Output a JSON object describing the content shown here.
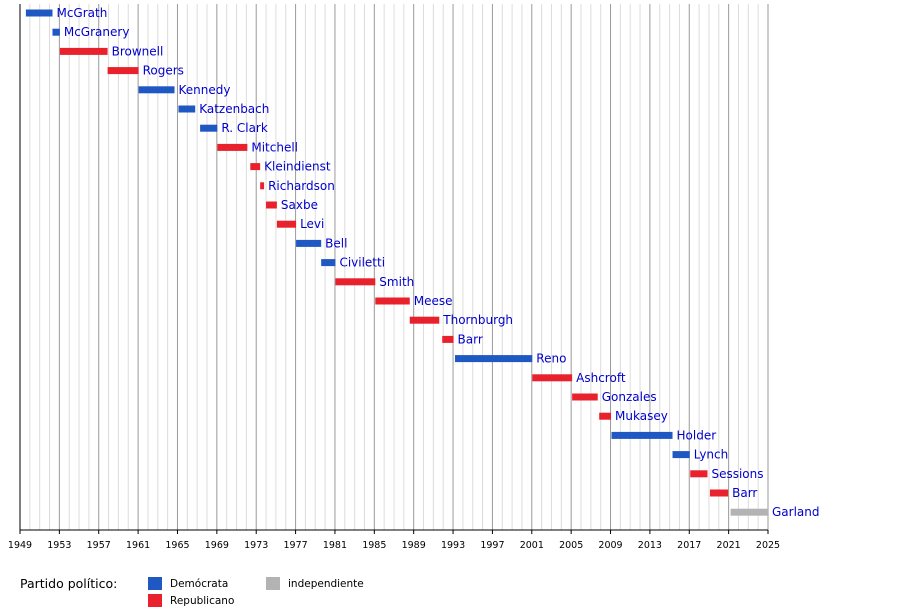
{
  "chart_data": {
    "type": "timeline",
    "xlim": [
      1949,
      2025
    ],
    "xticks": [
      "1949",
      "1953",
      "1957",
      "1961",
      "1965",
      "1969",
      "1973",
      "1977",
      "1981",
      "1985",
      "1989",
      "1993",
      "1997",
      "2001",
      "2005",
      "2009",
      "2013",
      "2017",
      "2021",
      "2025"
    ],
    "grid": "vertical every year",
    "colors": {
      "Demócrata": "#1f57c3",
      "Republicano": "#e8212c",
      "independiente": "#b3b3b3"
    },
    "terms": [
      {
        "name": "McGrath",
        "start": 1949.6,
        "end": 1952.3,
        "party": "Demócrata"
      },
      {
        "name": "McGranery",
        "start": 1952.3,
        "end": 1953.05,
        "party": "Demócrata"
      },
      {
        "name": "Brownell",
        "start": 1953.05,
        "end": 1957.9,
        "party": "Republicano"
      },
      {
        "name": "Rogers",
        "start": 1957.9,
        "end": 1961.05,
        "party": "Republicano"
      },
      {
        "name": "Kennedy",
        "start": 1961.05,
        "end": 1964.7,
        "party": "Demócrata"
      },
      {
        "name": "Katzenbach",
        "start": 1965.1,
        "end": 1966.8,
        "party": "Demócrata"
      },
      {
        "name": "R. Clark",
        "start": 1967.3,
        "end": 1969.05,
        "party": "Demócrata"
      },
      {
        "name": "Mitchell",
        "start": 1969.05,
        "end": 1972.1,
        "party": "Republicano"
      },
      {
        "name": "Kleindienst",
        "start": 1972.4,
        "end": 1973.4,
        "party": "Republicano"
      },
      {
        "name": "Richardson",
        "start": 1973.4,
        "end": 1973.8,
        "party": "Republicano"
      },
      {
        "name": "Saxbe",
        "start": 1974.0,
        "end": 1975.1,
        "party": "Republicano"
      },
      {
        "name": "Levi",
        "start": 1975.1,
        "end": 1977.05,
        "party": "Republicano"
      },
      {
        "name": "Bell",
        "start": 1977.05,
        "end": 1979.6,
        "party": "Demócrata"
      },
      {
        "name": "Civiletti",
        "start": 1979.6,
        "end": 1981.05,
        "party": "Demócrata"
      },
      {
        "name": "Smith",
        "start": 1981.05,
        "end": 1985.1,
        "party": "Republicano"
      },
      {
        "name": "Meese",
        "start": 1985.1,
        "end": 1988.6,
        "party": "Republicano"
      },
      {
        "name": "Thornburgh",
        "start": 1988.6,
        "end": 1991.6,
        "party": "Republicano"
      },
      {
        "name": "Barr",
        "start": 1991.9,
        "end": 1993.05,
        "party": "Republicano"
      },
      {
        "name": "Reno",
        "start": 1993.2,
        "end": 2001.05,
        "party": "Demócrata"
      },
      {
        "name": "Ashcroft",
        "start": 2001.05,
        "end": 2005.1,
        "party": "Republicano"
      },
      {
        "name": "Gonzales",
        "start": 2005.1,
        "end": 2007.7,
        "party": "Republicano"
      },
      {
        "name": "Mukasey",
        "start": 2007.85,
        "end": 2009.05,
        "party": "Republicano"
      },
      {
        "name": "Holder",
        "start": 2009.1,
        "end": 2015.3,
        "party": "Demócrata"
      },
      {
        "name": "Lynch",
        "start": 2015.3,
        "end": 2017.05,
        "party": "Demócrata"
      },
      {
        "name": "Sessions",
        "start": 2017.1,
        "end": 2018.85,
        "party": "Republicano"
      },
      {
        "name": "Barr",
        "start": 2019.1,
        "end": 2020.95,
        "party": "Republicano"
      },
      {
        "name": "Garland",
        "start": 2021.2,
        "end": 2025.0,
        "party": "independiente"
      }
    ]
  },
  "legend": {
    "title": "Partido político:",
    "items": [
      "Demócrata",
      "Republicano",
      "independiente"
    ]
  }
}
